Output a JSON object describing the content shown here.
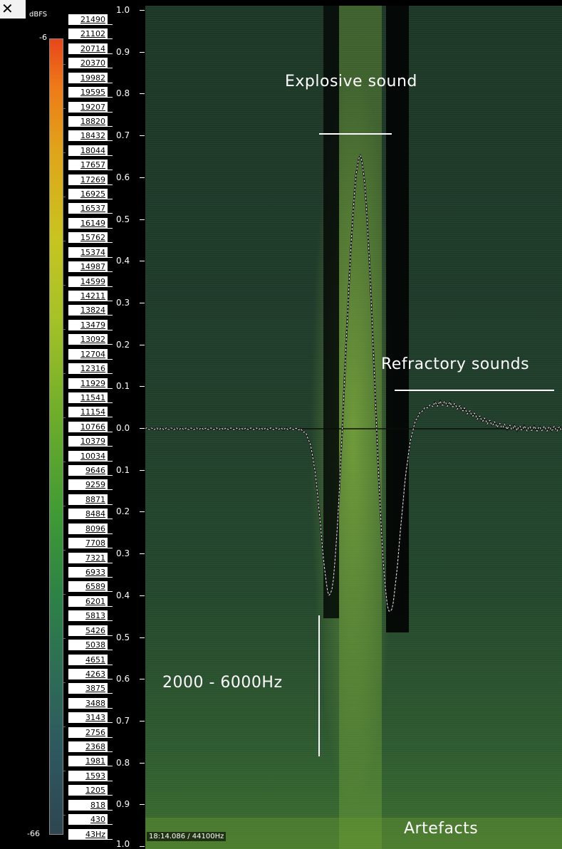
{
  "toolbar": {
    "close_glyph": "✕",
    "close_icon": "close-icon"
  },
  "level_meter": {
    "unit_label": "dBFS",
    "max_label": "-6",
    "min_label": "-66",
    "colors": [
      "#e8461a",
      "#e0a419",
      "#c8c420",
      "#6bac2a",
      "#2d8245",
      "#2e5760",
      "#2e4650"
    ]
  },
  "frequency_labels": [
    "21490",
    "21102",
    "20714",
    "20370",
    "19982",
    "19595",
    "19207",
    "18820",
    "18432",
    "18044",
    "17657",
    "17269",
    "16925",
    "16537",
    "16149",
    "15762",
    "15374",
    "14987",
    "14599",
    "14211",
    "13824",
    "13479",
    "13092",
    "12704",
    "12316",
    "11929",
    "11541",
    "11154",
    "10766",
    "10379",
    "10034",
    "9646",
    "9259",
    "8871",
    "8484",
    "8096",
    "7708",
    "7321",
    "6933",
    "6589",
    "6201",
    "5813",
    "5426",
    "5038",
    "4651",
    "4263",
    "3875",
    "3488",
    "3143",
    "2756",
    "2368",
    "1981",
    "1593",
    "1205",
    "818",
    "430",
    "43Hz"
  ],
  "amplitude_labels": [
    "1.0",
    "0.9",
    "0.8",
    "0.7",
    "0.6",
    "0.5",
    "0.4",
    "0.3",
    "0.2",
    "0.1",
    "0.0",
    "0.1",
    "0.2",
    "0.3",
    "0.4",
    "0.5",
    "0.6",
    "0.7",
    "0.8",
    "0.9",
    "1.0"
  ],
  "status_bar": {
    "text": "18:14.086 / 44100Hz"
  },
  "annotations": {
    "explosive": "Explosive sound",
    "refractory": "Refractory sounds",
    "band": "2000 - 6000Hz",
    "artefacts": "Artefacts"
  },
  "waveform": {
    "peak": 0.66,
    "trough_left": -0.36,
    "trough_right": -0.41,
    "rebound": 0.06
  }
}
